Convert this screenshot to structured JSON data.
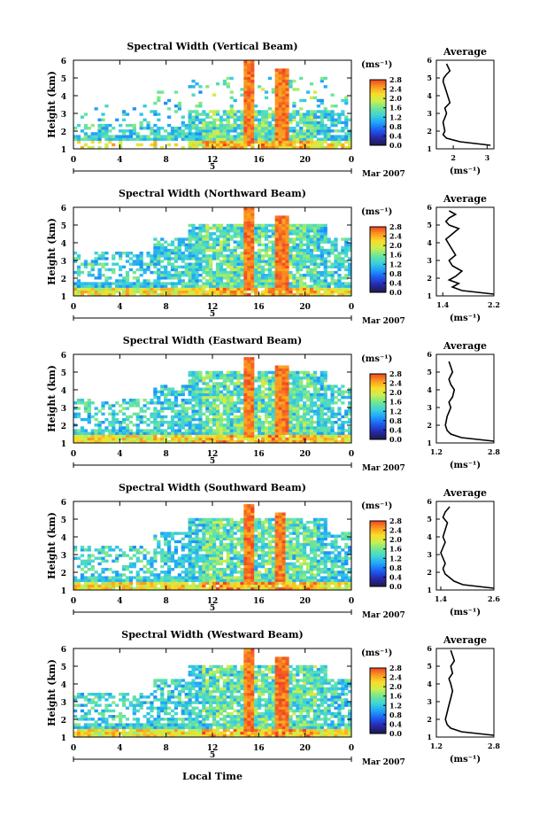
{
  "figure": {
    "xlabel": "Local Time",
    "date_label": "Mar 2007",
    "day_label": "5",
    "avg_title": "Average",
    "unit_label": "(ms⁻¹)",
    "ylabel": "Height (km)"
  },
  "chart_data": [
    {
      "type": "heatmap",
      "title": "Spectral Width (Vertical Beam)",
      "xlabel": "",
      "ylabel": "Height (km)",
      "xlim": [
        0,
        24
      ],
      "ylim": [
        1,
        6
      ],
      "xticks": [
        "0",
        "4",
        "8",
        "12",
        "16",
        "20",
        "0"
      ],
      "yticks": [
        "1",
        "2",
        "3",
        "4",
        "5",
        "6"
      ],
      "colorbar": {
        "label": "(ms⁻¹)",
        "ticks": [
          "0.0",
          "0.4",
          "0.8",
          "1.2",
          "1.6",
          "2.0",
          "2.4",
          "2.8"
        ],
        "range": [
          0,
          2.8
        ]
      },
      "average_profile": {
        "xlim": [
          1.5,
          3.2
        ],
        "xticks": [
          "2",
          "3"
        ],
        "x": [
          3.1,
          2.2,
          1.8,
          1.7,
          1.75,
          1.7,
          1.8,
          1.75,
          1.9,
          1.85,
          1.8,
          1.75,
          1.7,
          1.72,
          1.8,
          1.9,
          1.85,
          1.8
        ],
        "heights": [
          1.2,
          1.4,
          1.6,
          1.8,
          2.0,
          2.5,
          3.0,
          3.3,
          3.6,
          3.9,
          4.2,
          4.5,
          4.8,
          5.0,
          5.2,
          5.4,
          5.6,
          5.8
        ]
      },
      "features": {
        "bands": [
          {
            "y": [
              1.5,
              2.3
            ],
            "x": [
              1,
              24
            ],
            "level": 0.7
          }
        ],
        "columns": [
          {
            "x": [
              14.8,
              15.5
            ],
            "y": [
              1.3,
              6.0
            ]
          },
          {
            "x": [
              17.4,
              18.5
            ],
            "y": [
              1.5,
              5.5
            ]
          }
        ]
      }
    },
    {
      "type": "heatmap",
      "title": "Spectral Width (Northward Beam)",
      "xlabel": "",
      "ylabel": "Height (km)",
      "xlim": [
        0,
        24
      ],
      "ylim": [
        1,
        6
      ],
      "xticks": [
        "0",
        "4",
        "8",
        "12",
        "16",
        "20",
        "0"
      ],
      "yticks": [
        "1",
        "2",
        "3",
        "4",
        "5",
        "6"
      ],
      "colorbar": {
        "label": "(ms⁻¹)",
        "ticks": [
          "0.0",
          "0.4",
          "0.8",
          "1.2",
          "1.6",
          "2.0",
          "2.4",
          "2.8"
        ],
        "range": [
          0,
          2.8
        ]
      },
      "average_profile": {
        "xlim": [
          1.3,
          2.2
        ],
        "xticks": [
          "1.4",
          "2.2"
        ],
        "x": [
          2.2,
          1.7,
          1.55,
          1.65,
          1.5,
          1.6,
          1.7,
          1.55,
          1.5,
          1.6,
          1.55,
          1.5,
          1.45,
          1.55,
          1.65,
          1.5,
          1.45,
          1.5,
          1.6,
          1.5
        ],
        "heights": [
          1.1,
          1.3,
          1.5,
          1.7,
          1.9,
          2.1,
          2.4,
          2.7,
          3.0,
          3.3,
          3.6,
          3.9,
          4.2,
          4.5,
          4.8,
          5.0,
          5.2,
          5.4,
          5.6,
          5.8
        ]
      },
      "features": {
        "columns": [
          {
            "x": [
              14.7,
              15.5
            ],
            "y": [
              1.3,
              6.0
            ]
          },
          {
            "x": [
              17.4,
              18.5
            ],
            "y": [
              1.4,
              5.5
            ]
          }
        ]
      }
    },
    {
      "type": "heatmap",
      "title": "Spectral Width (Eastward Beam)",
      "xlabel": "",
      "ylabel": "Height (km)",
      "xlim": [
        0,
        24
      ],
      "ylim": [
        1,
        6
      ],
      "xticks": [
        "0",
        "4",
        "8",
        "12",
        "16",
        "20",
        "0"
      ],
      "yticks": [
        "1",
        "2",
        "3",
        "4",
        "5",
        "6"
      ],
      "colorbar": {
        "label": "(ms⁻¹)",
        "ticks": [
          "0.0",
          "0.4",
          "0.8",
          "1.2",
          "1.6",
          "2.0",
          "2.4",
          "2.8"
        ],
        "range": [
          0,
          2.8
        ]
      },
      "average_profile": {
        "xlim": [
          1.2,
          2.8
        ],
        "xticks": [
          "1.2",
          "2.8"
        ],
        "x": [
          2.8,
          1.9,
          1.6,
          1.5,
          1.45,
          1.5,
          1.6,
          1.55,
          1.65,
          1.7,
          1.6,
          1.55,
          1.65,
          1.6,
          1.55
        ],
        "heights": [
          1.1,
          1.3,
          1.5,
          1.7,
          2.0,
          2.5,
          3.0,
          3.3,
          3.6,
          4.0,
          4.3,
          4.6,
          5.0,
          5.3,
          5.6
        ]
      },
      "features": {
        "columns": [
          {
            "x": [
              14.8,
              15.5
            ],
            "y": [
              1.3,
              5.8
            ]
          },
          {
            "x": [
              17.5,
              18.6
            ],
            "y": [
              1.4,
              5.3
            ]
          }
        ]
      }
    },
    {
      "type": "heatmap",
      "title": "Spectral Width (Southward Beam)",
      "xlabel": "",
      "ylabel": "Height (km)",
      "xlim": [
        0,
        24
      ],
      "ylim": [
        1,
        6
      ],
      "xticks": [
        "0",
        "4",
        "8",
        "12",
        "16",
        "20",
        "0"
      ],
      "yticks": [
        "1",
        "2",
        "3",
        "4",
        "5",
        "6"
      ],
      "colorbar": {
        "label": "(ms⁻¹)",
        "ticks": [
          "0.0",
          "0.4",
          "0.8",
          "1.2",
          "1.6",
          "2.0",
          "2.4",
          "2.8"
        ],
        "range": [
          0,
          2.8
        ]
      },
      "average_profile": {
        "xlim": [
          1.3,
          2.6
        ],
        "xticks": [
          "1.4",
          "2.6"
        ],
        "x": [
          2.6,
          1.9,
          1.7,
          1.6,
          1.5,
          1.45,
          1.5,
          1.45,
          1.4,
          1.45,
          1.5,
          1.45,
          1.5,
          1.55,
          1.45,
          1.5,
          1.6
        ],
        "heights": [
          1.1,
          1.3,
          1.5,
          1.7,
          1.9,
          2.2,
          2.5,
          2.8,
          3.1,
          3.4,
          3.7,
          4.0,
          4.4,
          4.8,
          5.1,
          5.4,
          5.7
        ]
      },
      "features": {
        "columns": [
          {
            "x": [
              14.8,
              15.5
            ],
            "y": [
              1.3,
              5.8
            ]
          },
          {
            "x": [
              17.4,
              18.4
            ],
            "y": [
              1.4,
              5.3
            ]
          }
        ]
      }
    },
    {
      "type": "heatmap",
      "title": "Spectral Width (Westward Beam)",
      "xlabel": "Local Time",
      "ylabel": "Height (km)",
      "xlim": [
        0,
        24
      ],
      "ylim": [
        1,
        6
      ],
      "xticks": [
        "0",
        "4",
        "8",
        "12",
        "16",
        "20",
        "0"
      ],
      "yticks": [
        "1",
        "2",
        "3",
        "4",
        "5",
        "6"
      ],
      "colorbar": {
        "label": "(ms⁻¹)",
        "ticks": [
          "0.0",
          "0.4",
          "0.8",
          "1.2",
          "1.6",
          "2.0",
          "2.4",
          "2.8"
        ],
        "range": [
          0,
          2.8
        ]
      },
      "average_profile": {
        "xlim": [
          1.2,
          2.8
        ],
        "xticks": [
          "1.2",
          "2.8"
        ],
        "x": [
          2.8,
          1.9,
          1.6,
          1.5,
          1.45,
          1.5,
          1.55,
          1.6,
          1.65,
          1.6,
          1.55,
          1.65,
          1.6,
          1.7,
          1.65,
          1.6
        ],
        "heights": [
          1.1,
          1.3,
          1.5,
          1.7,
          2.0,
          2.4,
          2.8,
          3.2,
          3.6,
          4.0,
          4.3,
          4.6,
          5.0,
          5.3,
          5.6,
          5.9
        ]
      },
      "features": {
        "columns": [
          {
            "x": [
              14.8,
              15.5
            ],
            "y": [
              1.3,
              6.0
            ]
          },
          {
            "x": [
              17.5,
              18.5
            ],
            "y": [
              1.4,
              5.5
            ]
          }
        ]
      }
    }
  ]
}
